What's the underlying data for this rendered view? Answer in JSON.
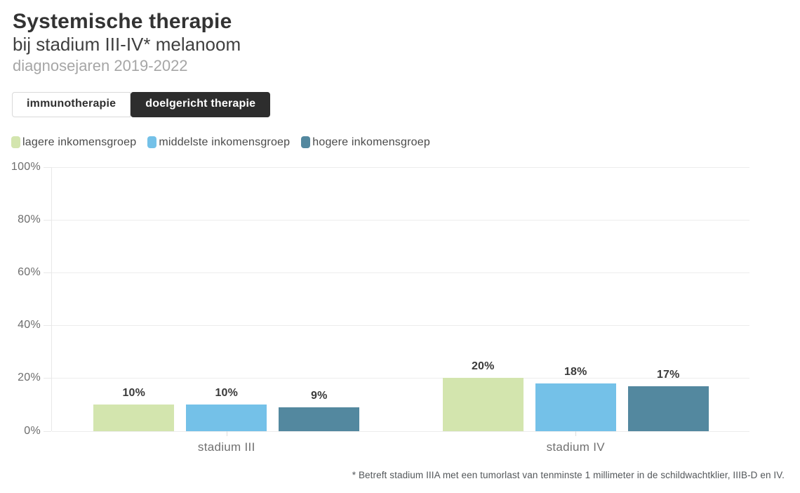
{
  "header": {
    "title": "Systemische therapie",
    "subtitle": "bij stadium III-IV* melanoom",
    "meta": "diagnosejaren 2019-2022"
  },
  "tabs": [
    {
      "label": "immunotherapie",
      "active": false
    },
    {
      "label": "doelgericht therapie",
      "active": true
    }
  ],
  "chart_data": {
    "type": "bar",
    "title": "Systemische therapie bij stadium III-IV* melanoom",
    "categories": [
      "stadium III",
      "stadium IV"
    ],
    "series": [
      {
        "name": "lagere inkomensgroep",
        "color": "#d3e5ae",
        "values": [
          10,
          20
        ]
      },
      {
        "name": "middelste inkomensgroep",
        "color": "#74c1e8",
        "values": [
          10,
          18
        ]
      },
      {
        "name": "hogere inkomensgroep",
        "color": "#53889f",
        "values": [
          9,
          17
        ]
      }
    ],
    "value_suffix": "%",
    "ylim": [
      0,
      100
    ],
    "yticks": [
      0,
      20,
      40,
      60,
      80,
      100
    ],
    "ytick_suffix": "%",
    "grid": true,
    "legend_position": "top"
  },
  "footnote": "* Betreft stadium IIIA met een tumorlast van tenminste 1 millimeter in de schildwachtklier, IIIB-D en IV.",
  "colors": {
    "active_tab_bg": "#2d2d2d",
    "active_tab_text": "#ffffff",
    "inactive_tab_bg": "#ffffff",
    "inactive_tab_text": "#2f2f2f",
    "gridline": "#ededed",
    "axis_text": "#6d6d6d",
    "title_text": "#333333"
  }
}
